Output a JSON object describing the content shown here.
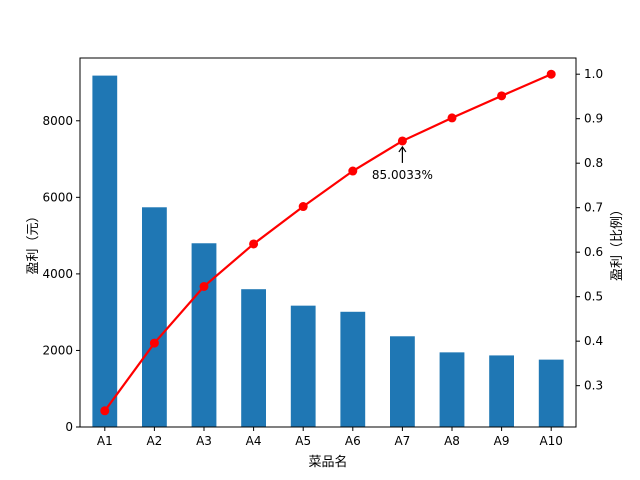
{
  "chart_data": {
    "type": "bar+line",
    "categories": [
      "A1",
      "A2",
      "A3",
      "A4",
      "A5",
      "A6",
      "A7",
      "A8",
      "A9",
      "A10"
    ],
    "bar_series": {
      "values": [
        9180,
        5740,
        4800,
        3600,
        3170,
        3010,
        2370,
        1950,
        1870,
        1760
      ],
      "color": "#1f77b4",
      "axis": "left"
    },
    "line_series": {
      "values": [
        0.2435,
        0.3957,
        0.523,
        0.6185,
        0.7026,
        0.7824,
        0.85,
        0.9017,
        0.9513,
        1.0
      ],
      "color": "#ff0000",
      "axis": "right",
      "marker": "circle"
    },
    "xlabel": "菜品名",
    "ylabel_left": "盈利（元）",
    "ylabel_right": "盈利（比例）",
    "ylim_left": [
      0,
      9640
    ],
    "ylim_right": [
      0.2071,
      1.0364
    ],
    "yticks_left": [
      0,
      2000,
      4000,
      6000,
      8000
    ],
    "yticks_right": [
      0.3,
      0.4,
      0.5,
      0.6,
      0.7,
      0.8,
      0.9,
      1.0
    ],
    "ytick_labels_right": [
      "0.3",
      "0.4",
      "0.5",
      "0.6",
      "0.7",
      "0.8",
      "0.9",
      "1.0"
    ],
    "annotation": {
      "text": "85.0033%",
      "category": "A7",
      "value": 0.850033,
      "arrow": true
    },
    "grid": false,
    "legend": false
  }
}
